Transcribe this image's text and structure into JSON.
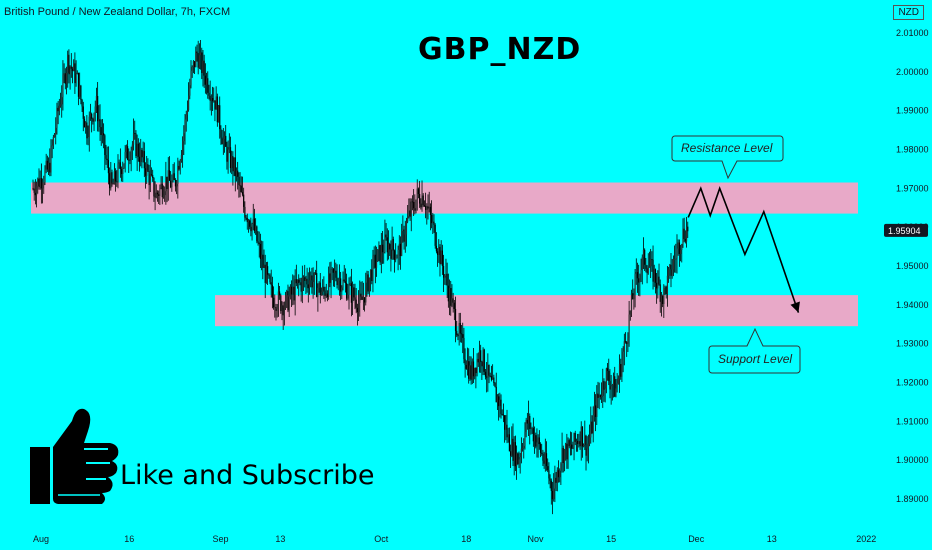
{
  "header": {
    "symbol_line": "British Pound / New Zealand Dollar, 7h, FXCM",
    "currency": "NZD"
  },
  "title": "GBP_NZD",
  "cta_text": "Like and Subscribe",
  "icons": {
    "thumbs_up": "thumbs-up-icon"
  },
  "colors": {
    "background": "#00ffff",
    "zone": "#e8a9c8",
    "candle": "#000000",
    "price_tag": "#131722"
  },
  "chart_data": {
    "type": "candlestick",
    "title": "GBP_NZD",
    "timeframe": "7h",
    "ylim": [
      1.885,
      2.015
    ],
    "yticks": [
      "2.01000",
      "2.00000",
      "1.99000",
      "1.98000",
      "1.97000",
      "1.96000",
      "1.95000",
      "1.94000",
      "1.93000",
      "1.92000",
      "1.91000",
      "1.90000",
      "1.89000"
    ],
    "xticks": [
      "Aug",
      "16",
      "Sep",
      "13",
      "Oct",
      "18",
      "Nov",
      "15",
      "Dec",
      "13",
      "2022"
    ],
    "current_price": "1.95904",
    "price_path": [
      [
        0,
        1.97
      ],
      [
        5,
        1.975
      ],
      [
        8,
        1.99
      ],
      [
        11,
        2.003
      ],
      [
        14,
        1.998
      ],
      [
        17,
        1.985
      ],
      [
        20,
        1.992
      ],
      [
        23,
        1.978
      ],
      [
        25,
        1.97
      ],
      [
        28,
        1.976
      ],
      [
        32,
        1.982
      ],
      [
        36,
        1.975
      ],
      [
        39,
        1.968
      ],
      [
        42,
        1.972
      ],
      [
        45,
        1.971
      ],
      [
        48,
        1.985
      ],
      [
        50,
        1.998
      ],
      [
        52,
        2.005
      ],
      [
        55,
        1.998
      ],
      [
        58,
        1.992
      ],
      [
        61,
        1.98
      ],
      [
        64,
        1.975
      ],
      [
        67,
        1.965
      ],
      [
        70,
        1.96
      ],
      [
        73,
        1.95
      ],
      [
        76,
        1.942
      ],
      [
        80,
        1.94
      ],
      [
        84,
        1.945
      ],
      [
        88,
        1.947
      ],
      [
        92,
        1.943
      ],
      [
        96,
        1.948
      ],
      [
        100,
        1.944
      ],
      [
        104,
        1.94
      ],
      [
        108,
        1.95
      ],
      [
        112,
        1.956
      ],
      [
        116,
        1.953
      ],
      [
        119,
        1.962
      ],
      [
        122,
        1.968
      ],
      [
        124,
        1.968
      ],
      [
        127,
        1.96
      ],
      [
        130,
        1.95
      ],
      [
        133,
        1.94
      ],
      [
        136,
        1.93
      ],
      [
        139,
        1.922
      ],
      [
        142,
        1.928
      ],
      [
        145,
        1.92
      ],
      [
        148,
        1.915
      ],
      [
        151,
        1.905
      ],
      [
        154,
        1.9
      ],
      [
        157,
        1.91
      ],
      [
        160,
        1.905
      ],
      [
        163,
        1.898
      ],
      [
        165,
        1.892
      ],
      [
        168,
        1.902
      ],
      [
        171,
        1.903
      ],
      [
        174,
        1.907
      ],
      [
        176,
        1.903
      ],
      [
        179,
        1.915
      ],
      [
        182,
        1.922
      ],
      [
        185,
        1.918
      ],
      [
        188,
        1.93
      ],
      [
        191,
        1.945
      ],
      [
        194,
        1.952
      ],
      [
        197,
        1.948
      ],
      [
        200,
        1.942
      ],
      [
        203,
        1.95
      ],
      [
        206,
        1.958
      ],
      [
        208,
        1.96
      ]
    ],
    "resistance_zone": {
      "label": "Resistance Level",
      "low": 1.9635,
      "high": 1.9715
    },
    "support_zone": {
      "label": "Support Level",
      "low": 1.9345,
      "high": 1.9425
    },
    "projection": [
      [
        208,
        1.9625
      ],
      [
        212,
        1.97
      ],
      [
        215,
        1.963
      ],
      [
        218,
        1.97
      ],
      [
        226,
        1.953
      ],
      [
        232,
        1.964
      ],
      [
        243,
        1.938
      ]
    ]
  }
}
